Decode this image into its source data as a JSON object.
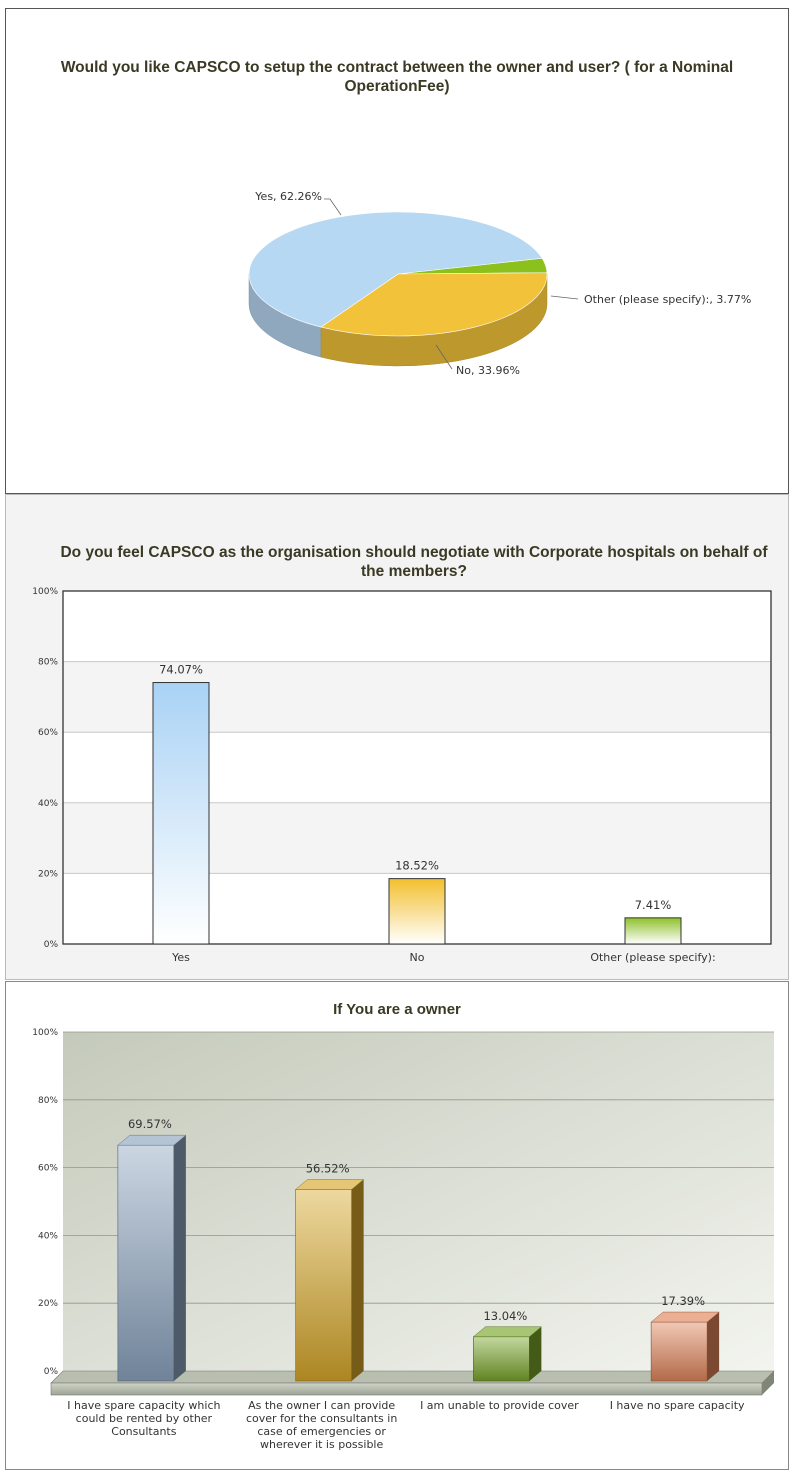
{
  "chart_data": [
    {
      "type": "pie",
      "title": "Would you like CAPSCO to setup the contract between the owner and user? ( for a Nominal OperationFee)",
      "slices": [
        {
          "label": "Yes",
          "value": 62.26,
          "display": "Yes, 62.26%",
          "color": "#b7d8f3"
        },
        {
          "label": "No",
          "value": 33.96,
          "display": "No, 33.96%",
          "color": "#f2c33a"
        },
        {
          "label": "Other (please specify):",
          "value": 3.77,
          "display": "Other (please specify):, 3.77%",
          "color": "#8cc01c"
        }
      ]
    },
    {
      "type": "bar",
      "title": "Do you feel CAPSCO as the organisation should negotiate with Corporate hospitals on behalf of the members?",
      "categories": [
        "Yes",
        "No",
        "Other (please specify):"
      ],
      "values": [
        74.07,
        18.52,
        7.41
      ],
      "value_labels": [
        "74.07%",
        "18.52%",
        "7.41%"
      ],
      "colors": [
        "#a9d2f5",
        "#f2bf2e",
        "#8fc12c"
      ],
      "ylim": [
        0,
        100
      ],
      "yticks": [
        "0%",
        "20%",
        "40%",
        "60%",
        "80%",
        "100%"
      ],
      "grid": true
    },
    {
      "type": "bar",
      "title": "If You are a owner",
      "categories": [
        "I have spare capacity which could be rented by other Consultants",
        "As the owner I can provide cover for the consultants in case of emergencies or wherever it is possible",
        "I am unable to provide cover",
        "I have no spare capacity"
      ],
      "values": [
        69.57,
        56.52,
        13.04,
        17.39
      ],
      "value_labels": [
        "69.57%",
        "56.52%",
        "13.04%",
        "17.39%"
      ],
      "colors": [
        "#8ca4bf",
        "#d7a82a",
        "#79a52a",
        "#e0845a"
      ],
      "ylim": [
        0,
        100
      ],
      "yticks": [
        "0%",
        "20%",
        "40%",
        "60%",
        "80%",
        "100%"
      ],
      "grid": true
    }
  ]
}
